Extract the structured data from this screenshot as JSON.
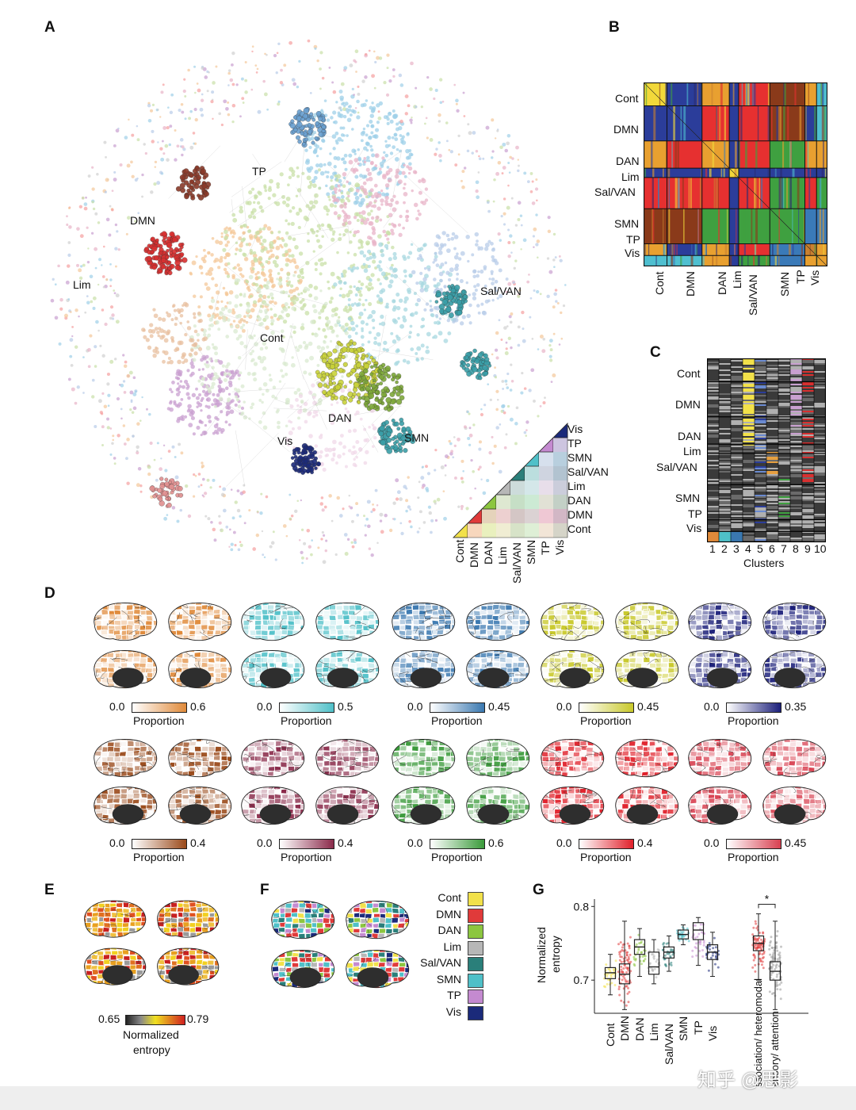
{
  "panels": {
    "A": "A",
    "B": "B",
    "C": "C",
    "D": "D",
    "E": "E",
    "F": "F",
    "G": "G"
  },
  "colors": {
    "Cont": "#f2e14a",
    "DMN": "#e03a3a",
    "DAN": "#8cc63f",
    "Lim": "#b7b7b7",
    "SalVAN": "#2a7f7a",
    "SMN": "#4fc0c8",
    "TP": "#c48ad0",
    "Vis": "#1b2a7a"
  },
  "panelA": {
    "labels": [
      "TP",
      "DMN",
      "Lim",
      "Sal/VAN",
      "Cont",
      "DAN",
      "SMN",
      "Vis"
    ],
    "legend_right": [
      "Vis",
      "TP",
      "SMN",
      "Sal/VAN",
      "Lim",
      "DAN",
      "DMN",
      "Cont"
    ],
    "legend_bottom": [
      "Cont",
      "DMN",
      "DAN",
      "Lim",
      "Sal/VAN",
      "SMN",
      "TP",
      "Vis"
    ]
  },
  "panelB": {
    "row_labels": [
      "Cont",
      "DMN",
      "DAN",
      "Lim",
      "Sal/VAN",
      "SMN",
      "TP",
      "Vis"
    ],
    "col_labels": [
      "Cont",
      "DMN",
      "DAN",
      "Lim",
      "Sal/VAN",
      "SMN",
      "TP",
      "Vis"
    ]
  },
  "panelC": {
    "row_labels": [
      "Cont",
      "DMN",
      "DAN",
      "Lim",
      "Sal/VAN",
      "SMN",
      "TP",
      "Vis"
    ],
    "cluster_numbers": [
      "1",
      "2",
      "3",
      "4",
      "5",
      "6",
      "7",
      "8",
      "9",
      "10"
    ],
    "xlabel": "Clusters"
  },
  "panelD": {
    "row1": [
      {
        "min": "0.0",
        "max": "0.6",
        "label": "Proportion",
        "color": "#e08a3a"
      },
      {
        "min": "0.0",
        "max": "0.5",
        "label": "Proportion",
        "color": "#4fc0c8"
      },
      {
        "min": "0.0",
        "max": "0.45",
        "label": "Proportion",
        "color": "#3a78b0"
      },
      {
        "min": "0.0",
        "max": "0.45",
        "label": "Proportion",
        "color": "#c8c82a"
      },
      {
        "min": "0.0",
        "max": "0.35",
        "label": "Proportion",
        "color": "#1b1f7a"
      }
    ],
    "row2": [
      {
        "min": "0.0",
        "max": "0.4",
        "label": "Proportion",
        "color": "#9a4a1a"
      },
      {
        "min": "0.0",
        "max": "0.4",
        "label": "Proportion",
        "color": "#8a2a4a"
      },
      {
        "min": "0.0",
        "max": "0.6",
        "label": "Proportion",
        "color": "#3a9a3a"
      },
      {
        "min": "0.0",
        "max": "0.4",
        "label": "Proportion",
        "color": "#e0202a"
      },
      {
        "min": "0.0",
        "max": "0.45",
        "label": "Proportion",
        "color": "#d84050"
      }
    ]
  },
  "panelE": {
    "min": "0.65",
    "max": "0.79",
    "label_line1": "Normalized",
    "label_line2": "entropy"
  },
  "panelF": {
    "legend": [
      "Cont",
      "DMN",
      "DAN",
      "Lim",
      "Sal/VAN",
      "SMN",
      "TP",
      "Vis"
    ]
  },
  "chart_data": {
    "type": "box",
    "ylabel_line1": "Normalized",
    "ylabel_line2": "entropy",
    "yticks": [
      "0.8",
      "0.7"
    ],
    "ylim": [
      0.655,
      0.81
    ],
    "categories": [
      "Cont",
      "DMN",
      "DAN",
      "Lim",
      "Sal/VAN",
      "SMN",
      "TP",
      "Vis",
      "Association/ heteromodal",
      "Sensory/ attention"
    ],
    "boxes": [
      {
        "name": "Cont",
        "q1": 0.702,
        "median": 0.71,
        "q3": 0.717,
        "min": 0.68,
        "max": 0.735,
        "color": "#f2e14a"
      },
      {
        "name": "DMN",
        "q1": 0.695,
        "median": 0.708,
        "q3": 0.722,
        "min": 0.66,
        "max": 0.78,
        "color": "#e03a3a"
      },
      {
        "name": "DAN",
        "q1": 0.735,
        "median": 0.745,
        "q3": 0.755,
        "min": 0.705,
        "max": 0.77,
        "color": "#8cc63f"
      },
      {
        "name": "Lim",
        "q1": 0.708,
        "median": 0.718,
        "q3": 0.738,
        "min": 0.695,
        "max": 0.755,
        "color": "#b7b7b7"
      },
      {
        "name": "Sal/VAN",
        "q1": 0.73,
        "median": 0.738,
        "q3": 0.745,
        "min": 0.712,
        "max": 0.76,
        "color": "#2a7f7a"
      },
      {
        "name": "SMN",
        "q1": 0.756,
        "median": 0.762,
        "q3": 0.768,
        "min": 0.748,
        "max": 0.775,
        "color": "#4fc0c8"
      },
      {
        "name": "TP",
        "q1": 0.755,
        "median": 0.768,
        "q3": 0.778,
        "min": 0.72,
        "max": 0.785,
        "color": "#c48ad0"
      },
      {
        "name": "Vis",
        "q1": 0.728,
        "median": 0.738,
        "q3": 0.748,
        "min": 0.705,
        "max": 0.765,
        "color": "#1b2a7a"
      },
      {
        "name": "Association/ heteromodal",
        "q1": 0.74,
        "median": 0.75,
        "q3": 0.76,
        "min": 0.7,
        "max": 0.79,
        "color": "#e03a3a"
      },
      {
        "name": "Sensory/ attention",
        "q1": 0.7,
        "median": 0.712,
        "q3": 0.725,
        "min": 0.66,
        "max": 0.78,
        "color": "#999999"
      }
    ],
    "significance": "*"
  },
  "watermark": "知乎 @思影"
}
